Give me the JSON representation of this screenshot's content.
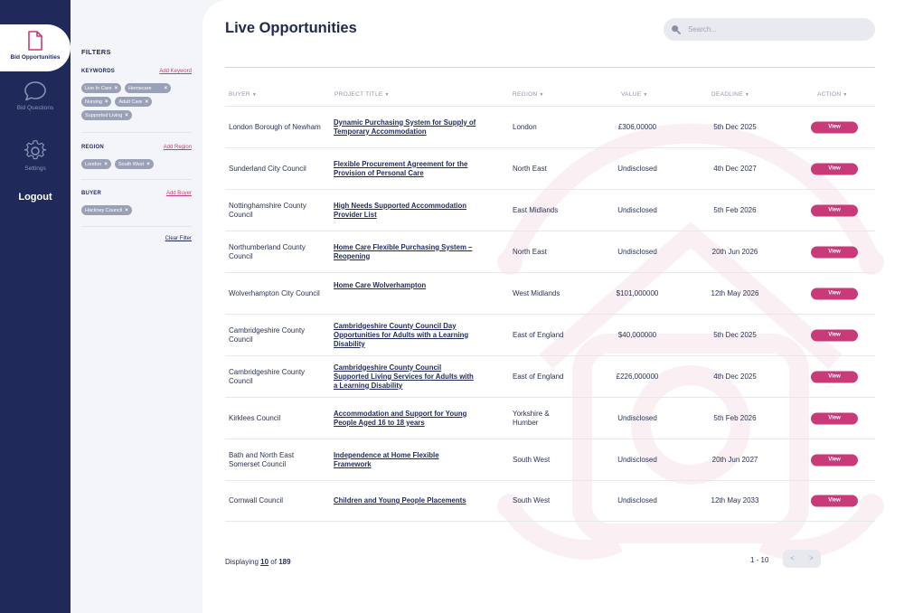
{
  "nav": {
    "items": [
      {
        "label": "Bid Opportunities",
        "icon": "document-icon",
        "active": true
      },
      {
        "label": "Bid Questions",
        "icon": "chat-bubble-icon",
        "active": false
      },
      {
        "label": "Settings",
        "icon": "gear-icon",
        "active": false
      }
    ],
    "logout": "Logout"
  },
  "filters": {
    "title": "FILTERS",
    "keywords": {
      "title": "KEYWORDS",
      "add": "Add Keyword",
      "chips": [
        "Live In Care",
        "Homecare",
        "Nursing",
        "Adult Care",
        "Supported Living"
      ]
    },
    "region": {
      "title": "REGION",
      "add": "Add Region",
      "chips": [
        "London",
        "South West"
      ]
    },
    "buyer": {
      "title": "BUYER",
      "add": "Add Buyer",
      "chips": [
        "Hackney Council"
      ]
    },
    "clear": "Clear Filter"
  },
  "main": {
    "title": "Live Opportunities",
    "search_placeholder": "Search...",
    "columns": {
      "buyer": "BUYER",
      "project": "PROJECT TITLE",
      "region": "REGION",
      "value": "VALUE",
      "deadline": "DEADLINE",
      "action": "ACTION"
    },
    "rows": [
      {
        "buyer": "London Borough of Newham",
        "project": "Dynamic Purchasing System for Supply of Temporary Accommodation",
        "region": "London",
        "value": "£306,00000",
        "deadline": "5th Dec 2025",
        "action": "View"
      },
      {
        "buyer": "Sunderland City Council",
        "project": "Flexible Procurement Agreement for the Provision of Personal Care",
        "region": "North East",
        "value": "Undisclosed",
        "deadline": "4th Dec 2027",
        "action": "View"
      },
      {
        "buyer": "Nottinghamshire County Council",
        "project": "High Needs Supported Accommodation Provider List",
        "region": "East Midlands",
        "value": "Undisclosed",
        "deadline": "5th Feb 2026",
        "action": "View"
      },
      {
        "buyer": "Northumberland County Council",
        "project": "Home Care Flexible Purchasing System – Reopening",
        "region": "North East",
        "value": "Undisclosed",
        "deadline": "20th Jun 2026",
        "action": "View"
      },
      {
        "buyer": "Wolverhampton City Council",
        "project": "Home Care Wolverhampton",
        "region": "West Midlands",
        "value": "$101,000000",
        "deadline": "12th May 2026",
        "action": "View"
      },
      {
        "buyer": "Cambridgeshire County Council",
        "project": "Cambridgeshire County Council Day Opportunities for Adults with a Learning Disability",
        "region": "East of England",
        "value": "$40,000000",
        "deadline": "5th Dec 2025",
        "action": "View"
      },
      {
        "buyer": "Cambridgeshire County Council",
        "project": "Cambridgeshire County Council Supported Living Services for Adults with a Learning Disability",
        "region": "East of England",
        "value": "£226,000000",
        "deadline": "4th Dec 2025",
        "action": "View"
      },
      {
        "buyer": "Kirklees Council",
        "project": "Accommodation and Support for Young People Aged 16 to 18 years",
        "region": "Yorkshire & Humber",
        "value": "Undisclosed",
        "deadline": "5th Feb 2026",
        "action": "View"
      },
      {
        "buyer": "Bath and North East Somerset Council",
        "project": "Independence at Home Flexible Framework",
        "region": "South West",
        "value": "Undisclosed",
        "deadline": "20th Jun 2027",
        "action": "View"
      },
      {
        "buyer": "Cornwall Council",
        "project": "Children and Young People Placements",
        "region": "South West",
        "value": "Undisclosed",
        "deadline": "12th May 2033",
        "action": "View"
      }
    ],
    "footer": {
      "displaying_prefix": "Displaying",
      "displaying_count": "10",
      "displaying_of": "of",
      "displaying_total": "189",
      "range": "1 - 10",
      "prev": "<",
      "next": ">"
    }
  },
  "colors": {
    "nav_bg": "#1f2a5a",
    "accent": "#c93a78",
    "chip_bg": "#9aa0b6"
  }
}
